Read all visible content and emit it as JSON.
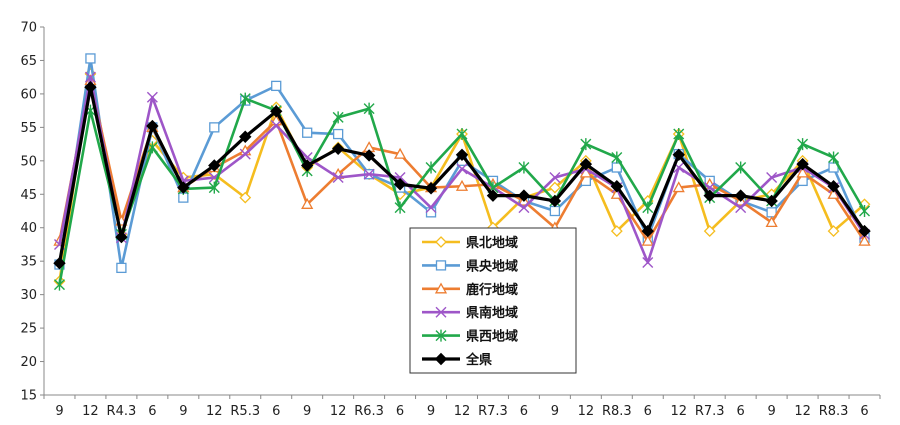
{
  "chart_data": {
    "type": "line",
    "categories": [
      "9",
      "12",
      "R4.3",
      "6",
      "9",
      "12",
      "R5.3",
      "6",
      "9",
      "12",
      "R6.3",
      "6",
      "9",
      "12",
      "R7.3",
      "6",
      "9",
      "12",
      "R8.3",
      "6",
      "12",
      "R7.3",
      "6",
      "9",
      "12",
      "R8.3",
      "6"
    ],
    "ylim": [
      15,
      70
    ],
    "yticks": [
      15,
      20,
      25,
      30,
      35,
      40,
      45,
      50,
      55,
      60,
      65,
      70
    ],
    "grid": false,
    "legend_position": "center-right",
    "series": [
      {
        "name": "県北地域",
        "color": "#f5bd1f",
        "marker": "diamond-open",
        "values": [
          32,
          63,
          39,
          53,
          47.5,
          48,
          44.5,
          58,
          49,
          52,
          48,
          45,
          46,
          54,
          40,
          44.5,
          46,
          50,
          39.5,
          44,
          54,
          39.5,
          44,
          45,
          50,
          39.5,
          43.5
        ]
      },
      {
        "name": "県央地域",
        "color": "#5b9bd5",
        "marker": "square-open",
        "values": [
          34.5,
          65.3,
          34,
          55,
          44.5,
          55,
          59,
          61.2,
          54.2,
          54,
          48,
          46,
          42.3,
          50,
          47,
          44,
          42.5,
          47,
          49,
          38.5,
          51,
          47,
          44,
          42.3,
          47,
          49,
          38.5
        ]
      },
      {
        "name": "鹿行地域",
        "color": "#ed7d31",
        "marker": "triangle-open",
        "values": [
          38,
          62,
          41,
          55,
          46,
          49,
          51.5,
          56,
          43.5,
          48,
          52,
          51,
          46,
          46.2,
          46.5,
          44,
          40,
          48.2,
          45,
          38,
          46,
          46.5,
          44,
          40.8,
          48.2,
          45,
          38
        ]
      },
      {
        "name": "県南地域",
        "color": "#9e56c8",
        "marker": "x",
        "values": [
          37.5,
          62.5,
          38.5,
          59.5,
          47,
          47.5,
          51,
          55.3,
          50.5,
          47.5,
          48,
          47.5,
          43,
          48.8,
          46,
          43,
          47.5,
          48.8,
          46,
          34.8,
          49,
          46,
          43,
          47.5,
          49,
          46,
          39
        ]
      },
      {
        "name": "県西地域",
        "color": "#21a84a",
        "marker": "asterisk",
        "values": [
          31.5,
          57.5,
          39,
          52,
          45.8,
          46,
          59.3,
          57.5,
          48.5,
          56.5,
          57.8,
          43,
          49,
          54,
          46,
          49,
          44,
          52.5,
          50.5,
          43,
          54,
          44.5,
          49,
          44,
          52.5,
          50.5,
          42.5
        ]
      },
      {
        "name": "全県",
        "color": "#000000",
        "marker": "diamond-filled",
        "values": [
          34.7,
          61,
          38.6,
          55.2,
          46,
          49.3,
          53.6,
          57.4,
          49.3,
          51.8,
          50.8,
          46.5,
          45.9,
          50.9,
          44.8,
          44.8,
          44,
          49.5,
          46.2,
          39.5,
          50.9,
          44.8,
          44.8,
          44,
          49.5,
          46.2,
          39.5
        ]
      }
    ]
  }
}
